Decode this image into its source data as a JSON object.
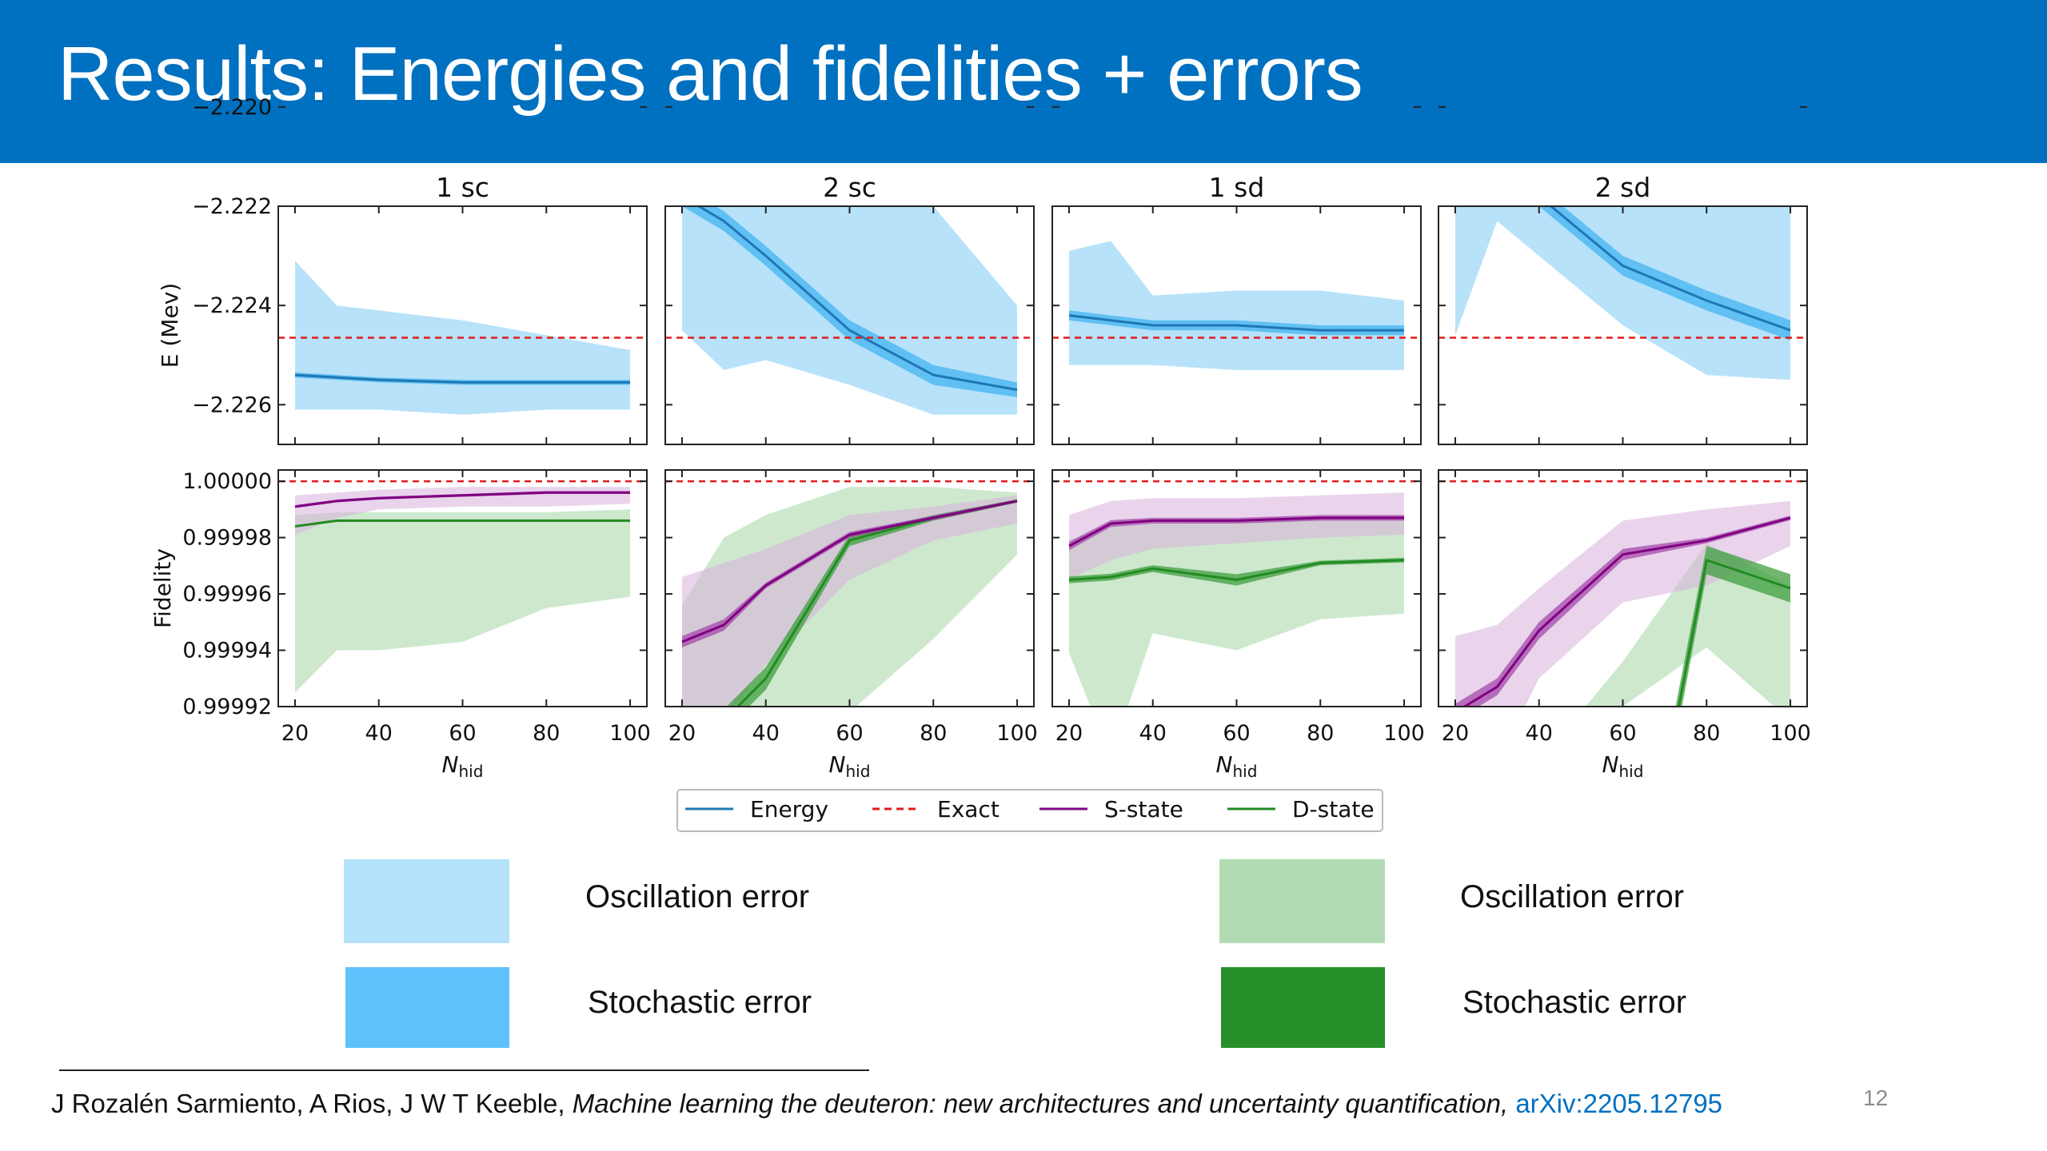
{
  "slide": {
    "title": "Results: Energies and fidelities + errors",
    "page_number": "12",
    "citation": {
      "authors": "J Rozalén Sarmiento, A Rios, J W T Keeble,",
      "title": "Machine learning the deuteron: new architectures and uncertainty quantification,",
      "link": "arXiv:2205.12795"
    }
  },
  "error_key": [
    {
      "label": "Oscillation error",
      "color": "#b5e2fb"
    },
    {
      "label": "Stochastic error",
      "color": "#5ec1fb"
    },
    {
      "label": "Oscillation error",
      "color": "#b3dbb3"
    },
    {
      "label": "Stochastic error",
      "color": "#278f27"
    }
  ],
  "chart_data": {
    "type": "line",
    "columns": [
      "1 sc",
      "2 sc",
      "1 sd",
      "2 sd"
    ],
    "x": [
      20,
      30,
      40,
      60,
      80,
      100
    ],
    "xlabel_main": "N",
    "xlabel_sub": "hid",
    "xticks": [
      "20",
      "40",
      "60",
      "80",
      "100"
    ],
    "xlim": [
      16,
      104
    ],
    "legend": [
      {
        "name": "Energy",
        "color": "#1f77b4",
        "dash": false
      },
      {
        "name": "Exact",
        "color": "#e31a1c",
        "dash": true
      },
      {
        "name": "S-state",
        "color": "#800080",
        "dash": false
      },
      {
        "name": "D-state",
        "color": "#228B22",
        "dash": false
      }
    ],
    "colors": {
      "energy_line": "#1f77b4",
      "energy_osc": "#b3e0fa",
      "energy_stoch": "#5bbdf2",
      "s_line": "#800080",
      "s_osc": "#d8b0dc",
      "s_stoch": "#a040a8",
      "d_line": "#228B22",
      "d_osc": "#c6e4c6",
      "d_stoch": "#3f9f3f",
      "overlap": "#a8a8a8",
      "exact": "#e31a1c"
    },
    "energy": {
      "ylabel": "E (Mev)",
      "ylim": [
        -2.2268,
        -2.222
      ],
      "yticks": [
        -2.22,
        -2.222,
        -2.224,
        -2.226
      ],
      "ytick_labels": [
        "−2.220",
        "−2.222",
        "−2.224",
        "−2.226"
      ],
      "exact": -2.22465,
      "panels": [
        {
          "mean": [
            -2.2254,
            -2.22545,
            -2.2255,
            -2.22555,
            -2.22555,
            -2.22555
          ],
          "stoch": [
            5e-05,
            5e-05,
            5e-05,
            5e-05,
            5e-05,
            5e-05
          ],
          "osc_hi": [
            -2.2231,
            -2.224,
            -2.2241,
            -2.2243,
            -2.2246,
            -2.2249
          ],
          "osc_lo": [
            -2.2261,
            -2.2261,
            -2.2261,
            -2.2262,
            -2.2261,
            -2.2261
          ]
        },
        {
          "mean": [
            -2.2218,
            -2.2223,
            -2.223,
            -2.2245,
            -2.2254,
            -2.2257
          ],
          "stoch": [
            0.0002,
            0.0002,
            0.0002,
            0.0002,
            0.0002,
            0.00015
          ],
          "osc_hi": [
            -2.219,
            -2.219,
            -2.219,
            -2.222,
            -2.222,
            -2.224
          ],
          "osc_lo": [
            -2.2245,
            -2.2253,
            -2.2251,
            -2.2256,
            -2.2262,
            -2.2262
          ]
        },
        {
          "mean": [
            -2.2242,
            -2.2243,
            -2.2244,
            -2.2244,
            -2.2245,
            -2.2245
          ],
          "stoch": [
            0.0001,
            0.0001,
            0.0001,
            0.0001,
            0.0001,
            0.0001
          ],
          "osc_hi": [
            -2.2229,
            -2.2227,
            -2.2238,
            -2.2237,
            -2.2237,
            -2.2239
          ],
          "osc_lo": [
            -2.2252,
            -2.2252,
            -2.2252,
            -2.2253,
            -2.2253,
            -2.2253
          ]
        },
        {
          "mean": [
            -2.2206,
            -2.2209,
            -2.2218,
            -2.2232,
            -2.2239,
            -2.2245
          ],
          "stoch": [
            0.0002,
            0.0002,
            0.0002,
            0.0002,
            0.0002,
            0.0002
          ],
          "osc_hi": [
            -2.219,
            -2.219,
            -2.219,
            -2.219,
            -2.219,
            -2.2213
          ],
          "osc_lo": [
            -2.2246,
            -2.2223,
            -2.223,
            -2.2244,
            -2.2254,
            -2.2255
          ]
        }
      ]
    },
    "fidelity": {
      "ylabel": "Fidelity",
      "ylim": [
        0.99992,
        1.000004
      ],
      "yticks": [
        1.0,
        0.99998,
        0.99996,
        0.99994,
        0.99992
      ],
      "ytick_labels": [
        "1.00000",
        "0.99998",
        "0.99996",
        "0.99994",
        "0.99992"
      ],
      "exact": 1.0,
      "panels": [
        {
          "s": {
            "mean": [
              0.999991,
              0.999993,
              0.999994,
              0.999995,
              0.999996,
              0.999996
            ],
            "stoch": [
              5e-07,
              5e-07,
              5e-07,
              5e-07,
              5e-07,
              5e-07
            ],
            "osc_hi": [
              0.999995,
              0.999996,
              0.999997,
              0.999998,
              0.999998,
              0.999998
            ],
            "osc_lo": [
              0.999981,
              0.999987,
              0.99999,
              0.999991,
              0.999991,
              0.999992
            ]
          },
          "d": {
            "mean": [
              0.999984,
              0.999986,
              0.999986,
              0.999986,
              0.999986,
              0.999986
            ],
            "stoch": [
              4e-07,
              4e-07,
              4e-07,
              4e-07,
              4e-07,
              4e-07
            ],
            "osc_hi": [
              0.999988,
              0.999989,
              0.999989,
              0.999989,
              0.999989,
              0.99999
            ],
            "osc_lo": [
              0.999925,
              0.99994,
              0.99994,
              0.999943,
              0.999955,
              0.999959
            ]
          }
        },
        {
          "s": {
            "mean": [
              0.999943,
              0.999949,
              0.999963,
              0.999981,
              0.999987,
              0.999993
            ],
            "stoch": [
              2e-06,
              2e-06,
              1e-06,
              1e-06,
              8e-07,
              5e-07
            ],
            "osc_hi": [
              0.999966,
              0.999971,
              0.999976,
              0.999988,
              0.999991,
              0.999995
            ],
            "osc_lo": [
              0.999915,
              0.999915,
              0.999935,
              0.999965,
              0.999979,
              0.999985
            ]
          },
          "d": {
            "mean": [
              0.999905,
              0.999915,
              0.99993,
              0.999979,
              0.999987,
              0.999993
            ],
            "stoch": [
              4e-06,
              4e-06,
              4e-06,
              2e-06,
              1e-06,
              6e-07
            ],
            "osc_hi": [
              0.999956,
              0.99998,
              0.999988,
              0.999998,
              0.999998,
              0.999996
            ],
            "osc_lo": [
              0.9999,
              0.9999,
              0.9999,
              0.999918,
              0.999944,
              0.999974
            ]
          }
        },
        {
          "s": {
            "mean": [
              0.999977,
              0.999985,
              0.999986,
              0.999986,
              0.999987,
              0.999987
            ],
            "stoch": [
              1.5e-06,
              1.2e-06,
              1e-06,
              1e-06,
              1e-06,
              1e-06
            ],
            "osc_hi": [
              0.999988,
              0.999993,
              0.999994,
              0.999994,
              0.999995,
              0.999996
            ],
            "osc_lo": [
              0.999965,
              0.999972,
              0.999976,
              0.999978,
              0.99998,
              0.999981
            ]
          },
          "d": {
            "mean": [
              0.999965,
              0.999966,
              0.999969,
              0.999965,
              0.999971,
              0.999972
            ],
            "stoch": [
              1.2e-06,
              1.2e-06,
              1.2e-06,
              2e-06,
              8e-07,
              8e-07
            ],
            "osc_hi": [
              0.999979,
              0.999984,
              0.999985,
              0.999986,
              0.999987,
              0.999988
            ],
            "osc_lo": [
              0.999939,
              0.999902,
              0.999946,
              0.99994,
              0.999951,
              0.999953
            ]
          }
        },
        {
          "s": {
            "mean": [
              0.999918,
              0.999927,
              0.999947,
              0.999974,
              0.999979,
              0.999987
            ],
            "stoch": [
              3e-06,
              3e-06,
              3e-06,
              2e-06,
              1e-06,
              8e-07
            ],
            "osc_hi": [
              0.999945,
              0.999949,
              0.999962,
              0.999986,
              0.99999,
              0.999993
            ],
            "osc_lo": [
              0.9999,
              0.9999,
              0.99993,
              0.999957,
              0.999963,
              0.999977
            ]
          },
          "d": {
            "mean": [
              0.9998,
              0.9998,
              0.9998,
              0.999815,
              0.999972,
              0.999962
            ],
            "stoch": [
              2e-05,
              2e-05,
              2e-05,
              8e-06,
              5e-06,
              5e-06
            ],
            "osc_hi": [
              0.9999,
              0.9999,
              0.9999,
              0.999936,
              0.999978,
              0.999963
            ],
            "osc_lo": [
              0.9999,
              0.9999,
              0.9999,
              0.99992,
              0.999941,
              0.999915
            ]
          }
        }
      ]
    }
  }
}
